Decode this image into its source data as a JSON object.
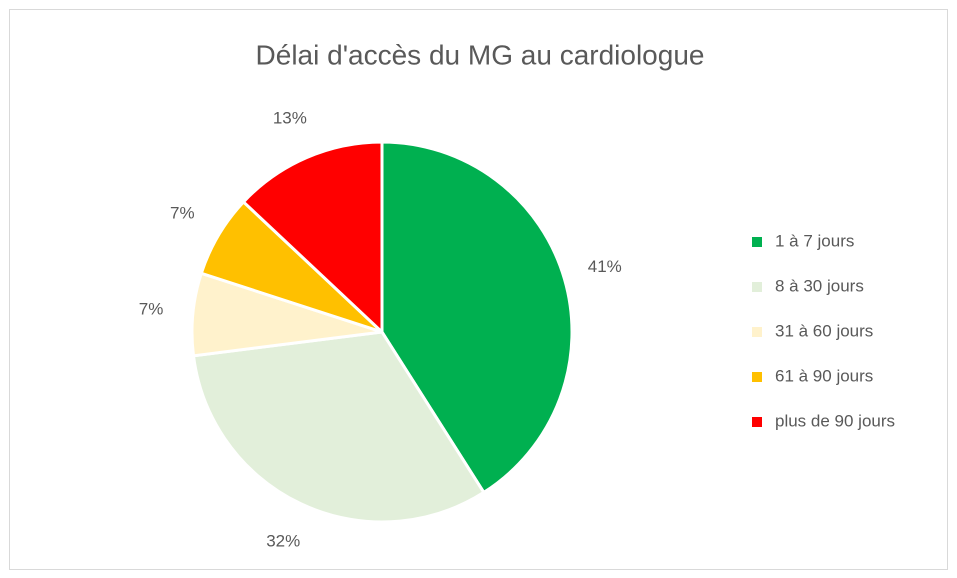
{
  "chart_data": {
    "type": "pie",
    "title": "Délai d'accès du MG au cardiologue",
    "categories": [
      "1 à 7 jours",
      "8 à 30 jours",
      "31 à 60 jours",
      "61 à 90 jours",
      "plus de 90 jours"
    ],
    "values": [
      41,
      32,
      7,
      7,
      13
    ],
    "value_labels": [
      "41%",
      "32%",
      "7%",
      "7%",
      "13%"
    ],
    "colors": [
      "#00b050",
      "#e2efda",
      "#fff2cc",
      "#ffc000",
      "#ff0000"
    ],
    "legend": "right"
  }
}
